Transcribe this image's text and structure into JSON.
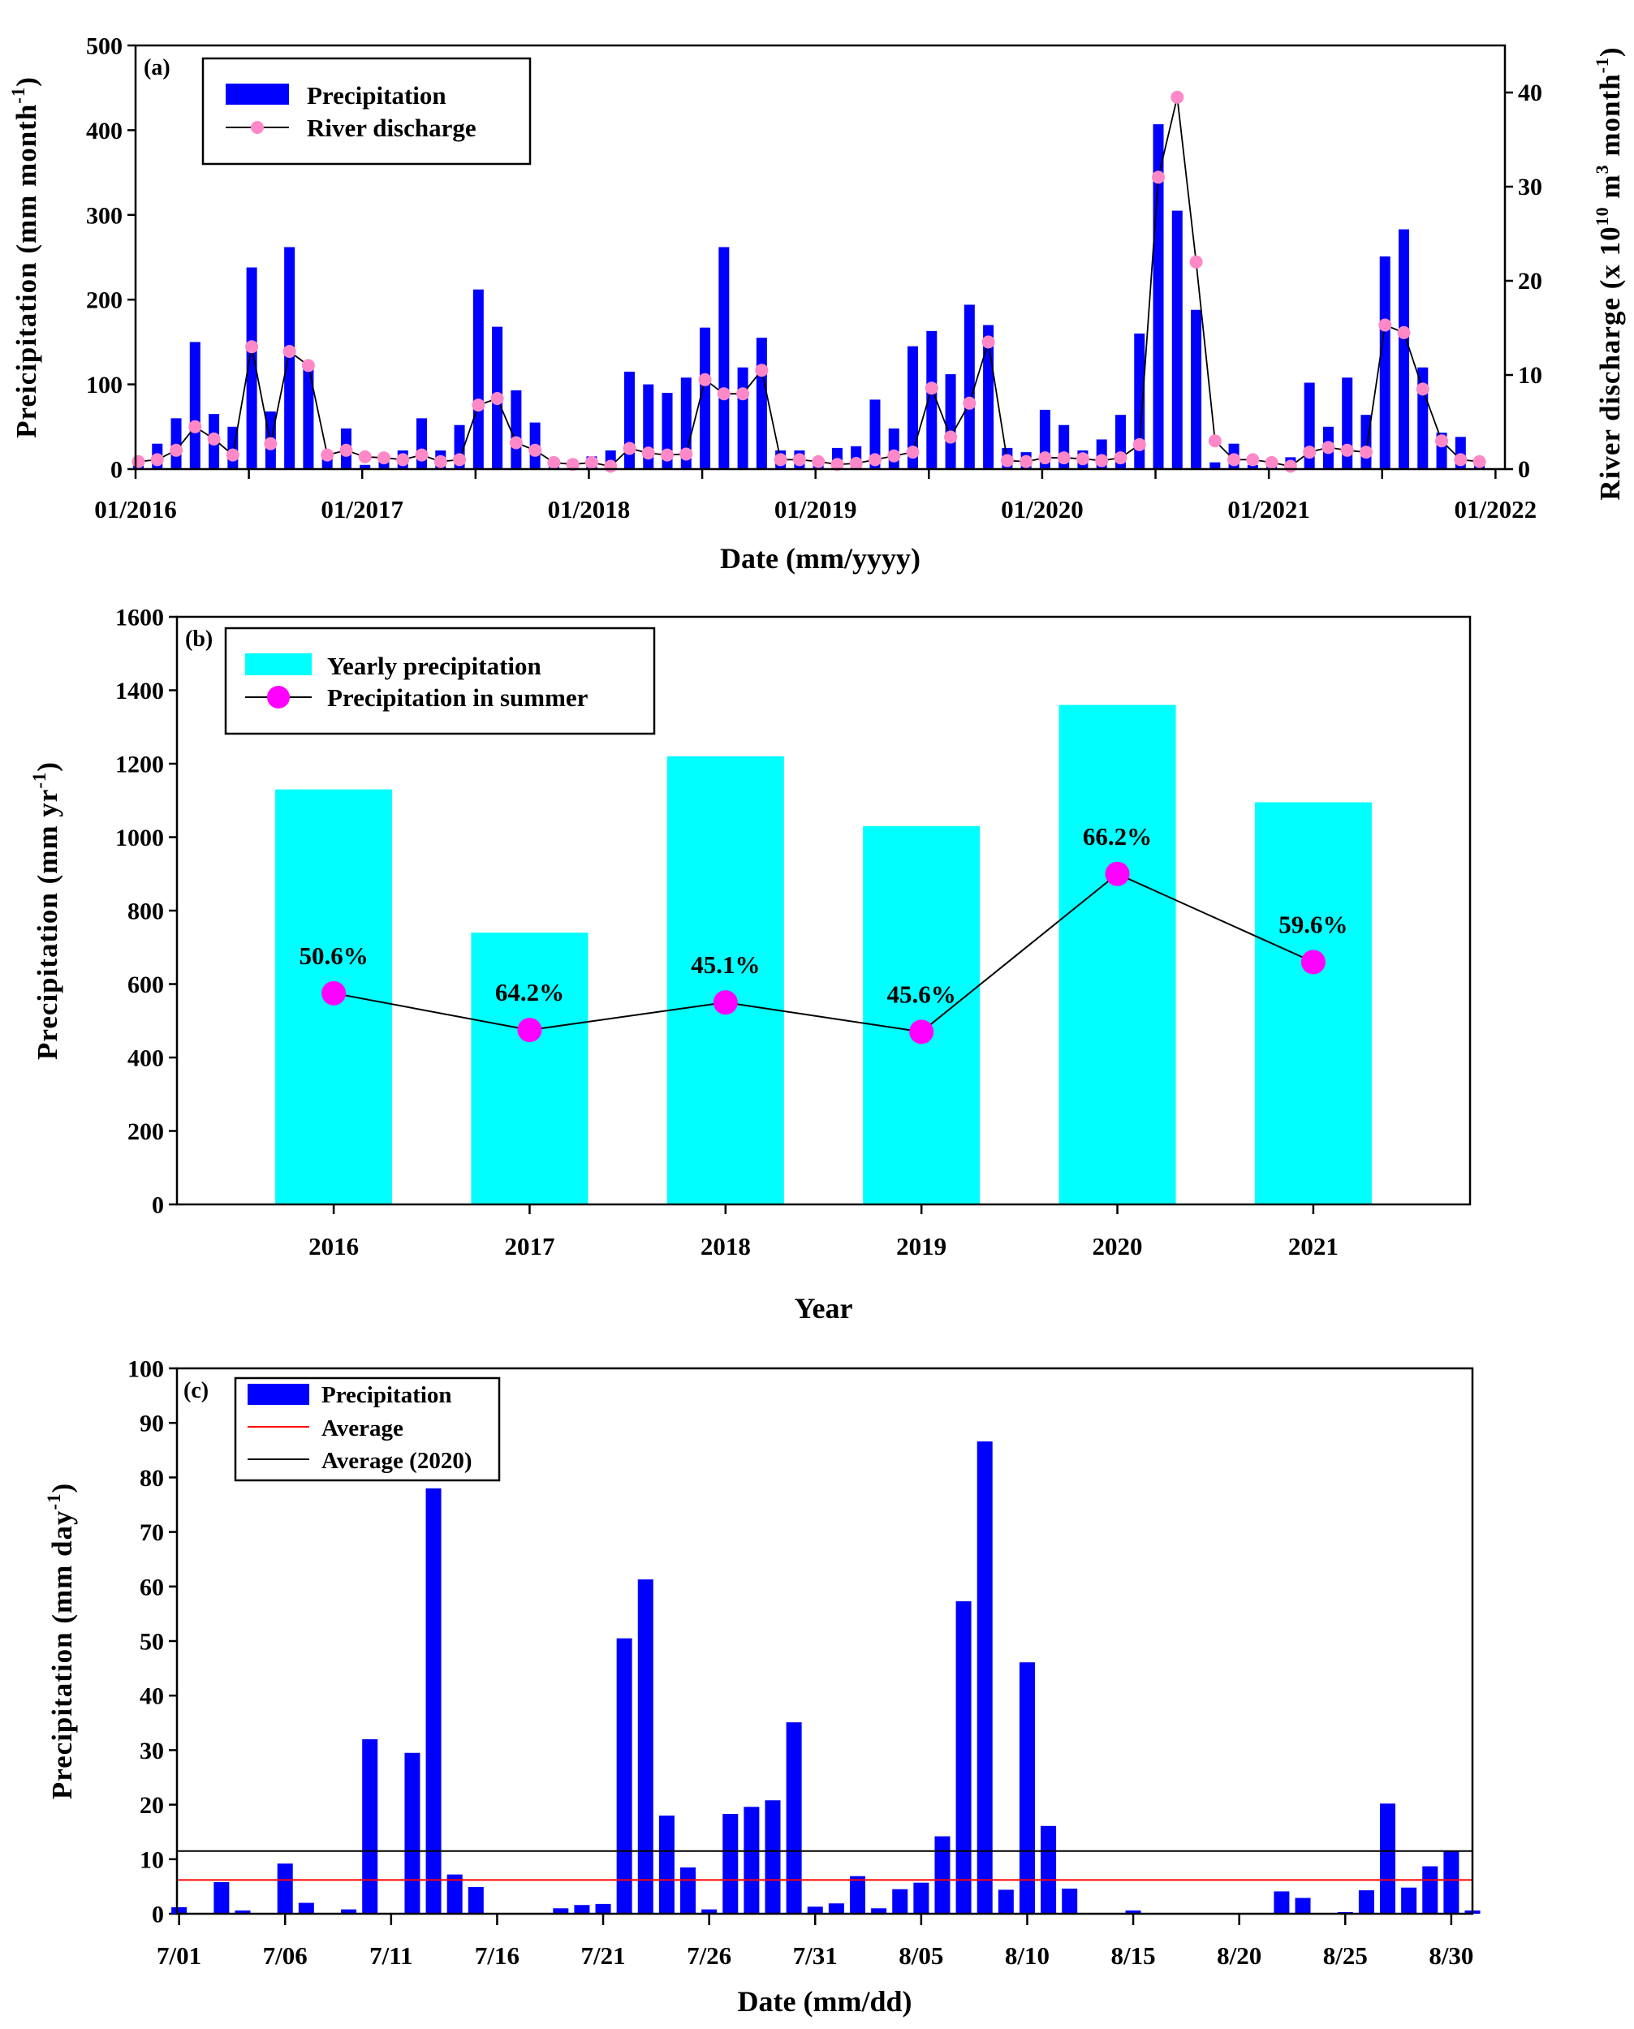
{
  "chart_data": [
    {
      "type": "bar",
      "panel_label": "(a)",
      "title": "",
      "xlabel": "Date (mm/yyyy)",
      "ylabel": "Preicipitation (mm month",
      "ylabel_sup": "-1",
      "ylabel_end": ")",
      "y2label": "River discharge (x 10",
      "y2label_sup1": "10",
      "y2label_mid": " m",
      "y2label_sup2": "3",
      "y2label_mid2": " month",
      "y2label_sup3": "-1",
      "y2label_end": ")",
      "ylim": [
        0,
        500
      ],
      "y2lim": [
        0,
        45
      ],
      "yticks": [
        0,
        100,
        200,
        300,
        400,
        500
      ],
      "y2ticks": [
        0,
        10,
        20,
        30,
        40
      ],
      "xtick_labels": [
        "01/2016",
        "01/2017",
        "01/2018",
        "01/2019",
        "01/2020",
        "01/2021",
        "01/2022"
      ],
      "legend": [
        "Precipitation",
        "River discharge"
      ],
      "legend_position": "top-left",
      "colors": {
        "bar": "#0000ff",
        "line": "#000000",
        "marker": "#ff88c8"
      },
      "series": [
        {
          "name": "Precipitation",
          "axis": "left",
          "values": [
            5,
            30,
            60,
            150,
            65,
            50,
            238,
            68,
            262,
            118,
            12,
            48,
            5,
            15,
            22,
            60,
            22,
            52,
            212,
            168,
            93,
            55,
            5,
            3,
            15,
            22,
            115,
            100,
            90,
            108,
            167,
            262,
            120,
            155,
            22,
            22,
            12,
            25,
            27,
            82,
            48,
            145,
            163,
            112,
            194,
            170,
            25,
            20,
            70,
            52,
            22,
            35,
            64,
            160,
            407,
            305,
            188,
            8,
            30,
            5,
            5,
            14,
            102,
            50,
            108,
            64,
            251,
            283,
            120,
            43,
            38,
            5
          ]
        },
        {
          "name": "River discharge",
          "axis": "right",
          "values": [
            0.8,
            1.0,
            2.0,
            4.5,
            3.2,
            1.5,
            13,
            2.7,
            12.5,
            11,
            1.5,
            2,
            1.3,
            1.2,
            1.0,
            1.5,
            0.8,
            1.0,
            6.8,
            7.5,
            2.8,
            2.0,
            0.7,
            0.5,
            0.7,
            0.3,
            2.2,
            1.7,
            1.5,
            1.6,
            9.5,
            8.0,
            8.0,
            10.5,
            1.0,
            1.0,
            0.8,
            0.5,
            0.6,
            1.0,
            1.4,
            1.8,
            8.6,
            3.4,
            7.0,
            13.5,
            0.9,
            0.8,
            1.2,
            1.2,
            1.1,
            0.9,
            1.2,
            2.6,
            31,
            39.5,
            22,
            3.0,
            1.0,
            1.0,
            0.7,
            0.3,
            1.8,
            2.3,
            2.0,
            1.8,
            15.3,
            14.5,
            8.5,
            3.0,
            1.0,
            0.8
          ]
        }
      ]
    },
    {
      "type": "bar",
      "panel_label": "(b)",
      "xlabel": "Year",
      "ylabel": "Precipitation (mm yr",
      "ylabel_sup": "-1",
      "ylabel_end": ")",
      "ylim": [
        0,
        1600
      ],
      "yticks": [
        0,
        200,
        400,
        600,
        800,
        1000,
        1200,
        1400,
        1600
      ],
      "categories": [
        "2016",
        "2017",
        "2018",
        "2019",
        "2020",
        "2021"
      ],
      "legend": [
        "Yearly precipitation",
        "Precipitation in summer"
      ],
      "legend_position": "top-left",
      "colors": {
        "bar": "#00ffff",
        "marker": "#ff00ff",
        "line": "#000000"
      },
      "series": [
        {
          "name": "Yearly precipitation",
          "values": [
            1130,
            740,
            1220,
            1030,
            1360,
            1095
          ]
        },
        {
          "name": "Precipitation in summer",
          "values": [
            575,
            475,
            550,
            470,
            900,
            660
          ]
        }
      ],
      "annotations": [
        "50.6%",
        "64.2%",
        "45.1%",
        "45.6%",
        "66.2%",
        "59.6%"
      ]
    },
    {
      "type": "bar",
      "panel_label": "(c)",
      "xlabel": "Date (mm/dd)",
      "ylabel": "Precipitation (mm day",
      "ylabel_sup": "-1",
      "ylabel_end": ")",
      "ylim": [
        0,
        100
      ],
      "yticks": [
        0,
        10,
        20,
        30,
        40,
        50,
        60,
        70,
        80,
        90,
        100
      ],
      "xtick_labels": [
        "7/01",
        "7/06",
        "7/11",
        "7/16",
        "7/21",
        "7/26",
        "7/31",
        "8/05",
        "8/10",
        "8/15",
        "8/20",
        "8/25",
        "8/30"
      ],
      "legend": [
        "Precipitation",
        "Average",
        "Average (2020)"
      ],
      "legend_position": "top-left",
      "colors": {
        "bar": "#0000ff",
        "average": "#ff0000",
        "average2020": "#000000"
      },
      "average": 6.2,
      "average_2020": 11.5,
      "series": [
        {
          "name": "Precipitation",
          "values": [
            1.2,
            0,
            5.8,
            0.6,
            0,
            9.2,
            2.0,
            0,
            0.8,
            32,
            0,
            29.5,
            78,
            7.2,
            4.9,
            0,
            0,
            0,
            1.0,
            1.6,
            1.8,
            50.5,
            61.3,
            18,
            8.5,
            0.8,
            18.3,
            19.6,
            20.8,
            35.1,
            1.3,
            1.9,
            6.9,
            1.0,
            4.5,
            5.7,
            14.2,
            57.3,
            86.6,
            4.4,
            46.1,
            16.1,
            4.6,
            0,
            0,
            0.6,
            0,
            0,
            0,
            0,
            0,
            0,
            4.1,
            2.9,
            0,
            0.3,
            4.3,
            20.2,
            4.8,
            8.7,
            11.5,
            0.6
          ]
        }
      ]
    }
  ]
}
